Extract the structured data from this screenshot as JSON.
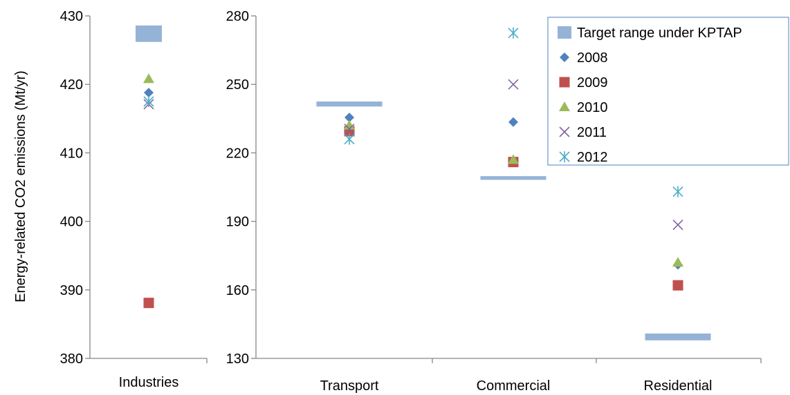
{
  "chart_data": {
    "type": "scatter",
    "ylabel": "Energy-related CO2 emissions (Mt/yr)",
    "legend_position": "top-right",
    "legend_entries": [
      {
        "key": "target",
        "label": "Target range under KPTAP",
        "color": "#95b3d7",
        "marker": "bar"
      },
      {
        "key": "y2008",
        "label": "2008",
        "color": "#4f81bd",
        "marker": "diamond"
      },
      {
        "key": "y2009",
        "label": "2009",
        "color": "#c0504d",
        "marker": "square"
      },
      {
        "key": "y2010",
        "label": "2010",
        "color": "#9bbb59",
        "marker": "triangle"
      },
      {
        "key": "y2011",
        "label": "2011",
        "color": "#8064a2",
        "marker": "x"
      },
      {
        "key": "y2012",
        "label": "2012",
        "color": "#4bacc6",
        "marker": "star"
      }
    ],
    "panels": [
      {
        "ylim": [
          380,
          430
        ],
        "yticks": [
          "380",
          "390",
          "400",
          "410",
          "420",
          "430"
        ],
        "categories": [
          "Industries"
        ],
        "target_ranges": [
          [
            426.2,
            428.6
          ]
        ],
        "series": [
          {
            "key": "y2008",
            "values": [
              418.8
            ]
          },
          {
            "key": "y2009",
            "values": [
              388.1
            ]
          },
          {
            "key": "y2010",
            "values": [
              420.8
            ]
          },
          {
            "key": "y2011",
            "values": [
              417.1
            ]
          },
          {
            "key": "y2012",
            "values": [
              417.5
            ]
          }
        ]
      },
      {
        "ylim": [
          130,
          280
        ],
        "yticks": [
          "130",
          "160",
          "190",
          "220",
          "250",
          "280"
        ],
        "categories": [
          "Transport",
          "Commercial",
          "Residential"
        ],
        "target_ranges": [
          [
            240.3,
            242.5
          ],
          [
            208.2,
            209.8
          ],
          [
            137.9,
            140.9
          ]
        ],
        "series": [
          {
            "key": "y2008",
            "values": [
              235.5,
              233.5,
              171
            ]
          },
          {
            "key": "y2009",
            "values": [
              229.5,
              216,
              162
            ]
          },
          {
            "key": "y2010",
            "values": [
              232,
              217,
              172
            ]
          },
          {
            "key": "y2011",
            "values": [
              230.5,
              250,
              188.5
            ]
          },
          {
            "key": "y2012",
            "values": [
              226,
              272.5,
              203
            ]
          }
        ]
      }
    ]
  }
}
